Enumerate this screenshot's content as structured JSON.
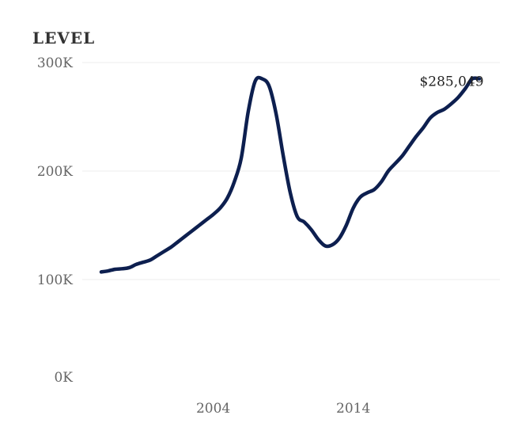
{
  "chart_data": {
    "type": "line",
    "title": "LEVEL",
    "xlabel": "",
    "ylabel": "",
    "xlim": [
      1995.5,
      2024
    ],
    "ylim": [
      0,
      300000
    ],
    "y_ticks": [
      {
        "value": 0,
        "label": "0K"
      },
      {
        "value": 100000,
        "label": "100K"
      },
      {
        "value": 200000,
        "label": "200K"
      },
      {
        "value": 300000,
        "label": "300K"
      }
    ],
    "x_ticks": [
      {
        "value": 2004,
        "label": "2004"
      },
      {
        "value": 2014,
        "label": "2014"
      }
    ],
    "grid": true,
    "legend": "none",
    "line_color": "#0d1f4f",
    "end_label": "$285,049",
    "series": [
      {
        "x": [
          1996,
          1996.5,
          1997,
          1997.5,
          1998,
          1998.5,
          1999,
          1999.5,
          2000,
          2000.5,
          2001,
          2001.5,
          2002,
          2002.5,
          2003,
          2003.5,
          2004,
          2004.5,
          2005,
          2005.5,
          2006,
          2006.5,
          2007,
          2007.5,
          2008,
          2008.5,
          2009,
          2009.5,
          2010,
          2010.5,
          2011,
          2011.5,
          2012,
          2012.5,
          2013,
          2013.5,
          2014,
          2014.5,
          2015,
          2015.5,
          2016,
          2016.5,
          2017,
          2017.5,
          2018,
          2018.5,
          2019,
          2019.5,
          2020,
          2020.5,
          2021,
          2021.5,
          2022,
          2022.5,
          2023
        ],
        "y": [
          107000,
          108000,
          109500,
          110000,
          111000,
          114000,
          116000,
          118000,
          122000,
          126000,
          130000,
          135000,
          140000,
          145000,
          150000,
          155000,
          160000,
          166000,
          175000,
          190000,
          212000,
          255000,
          283000,
          285000,
          278000,
          252000,
          214000,
          180000,
          158000,
          153000,
          146000,
          137000,
          131000,
          132000,
          138000,
          150000,
          166000,
          176000,
          180000,
          183000,
          190000,
          200000,
          207000,
          214000,
          223000,
          232000,
          240000,
          249000,
          254000,
          257000,
          262000,
          268000,
          276000,
          285049,
          285049
        ]
      }
    ]
  }
}
